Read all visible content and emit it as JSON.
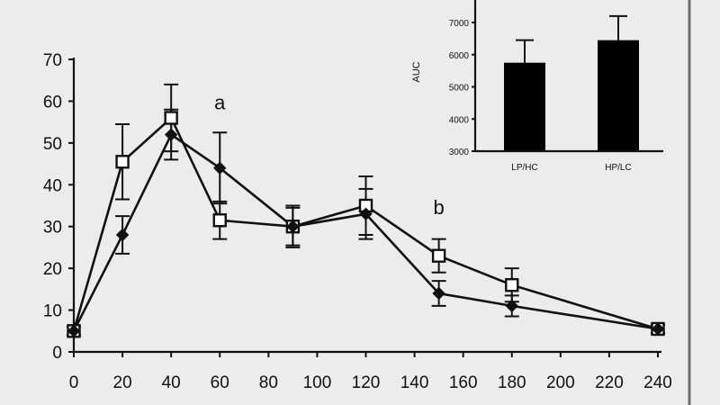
{
  "chart_data": [
    {
      "type": "line",
      "title": "",
      "xlabel": "",
      "ylabel": "",
      "xlim": [
        0,
        240
      ],
      "ylim": [
        0,
        70
      ],
      "x_ticks": [
        0,
        20,
        40,
        60,
        80,
        100,
        120,
        140,
        160,
        180,
        200,
        220,
        240
      ],
      "y_ticks": [
        0,
        10,
        20,
        30,
        40,
        50,
        60,
        70
      ],
      "grid": false,
      "legend": "none",
      "series": [
        {
          "marker": "open-square",
          "x": [
            0,
            20,
            40,
            60,
            90,
            120,
            150,
            180,
            240
          ],
          "y": [
            5,
            45.5,
            56,
            31.5,
            30,
            35,
            23,
            16,
            5.5
          ],
          "err": [
            1,
            9,
            8,
            4.5,
            5,
            7,
            4,
            4,
            1
          ]
        },
        {
          "marker": "filled-diamond",
          "x": [
            0,
            20,
            40,
            60,
            90,
            120,
            150,
            180,
            240
          ],
          "y": [
            5,
            28,
            52,
            44,
            30,
            33,
            14,
            11,
            5.5
          ],
          "err": [
            1,
            4.5,
            6,
            8.5,
            4.5,
            6,
            3,
            2.5,
            1
          ]
        }
      ],
      "annotations": [
        {
          "text": "a",
          "x": 60,
          "y": 58
        },
        {
          "text": "b",
          "x": 150,
          "y": 33
        }
      ]
    },
    {
      "type": "bar",
      "title": "",
      "xlabel": "",
      "ylabel": "AUC",
      "ylim": [
        3000,
        7000
      ],
      "y_ticks": [
        3000,
        4000,
        5000,
        6000,
        7000
      ],
      "categories": [
        "LP/HC",
        "HP/LC"
      ],
      "values": [
        5750,
        6450
      ],
      "err": [
        700,
        750
      ],
      "legend": "none",
      "grid": false
    }
  ]
}
